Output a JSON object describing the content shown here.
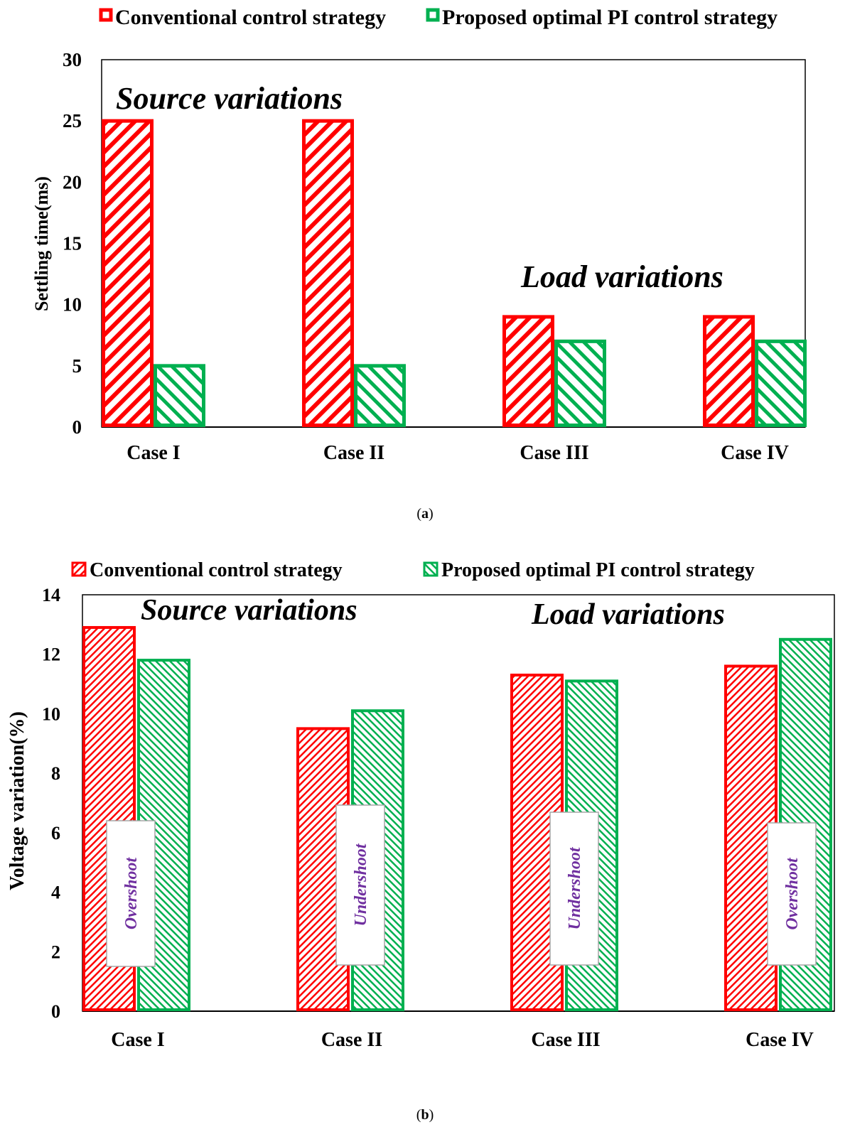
{
  "colors": {
    "conventional": "#ff0000",
    "proposed": "#00b050",
    "annotation": "#7030a0"
  },
  "chart_data": [
    {
      "type": "bar",
      "panel": "a",
      "caption_open": "(",
      "caption_letter": "a",
      "caption_close": ")",
      "categories": [
        "Case I",
        "Case II",
        "Case III",
        "Case IV"
      ],
      "series": [
        {
          "name": "Conventional control strategy",
          "values": [
            25,
            25,
            9,
            9
          ]
        },
        {
          "name": "Proposed optimal PI control strategy",
          "values": [
            5,
            5,
            7,
            7
          ]
        }
      ],
      "ylabel": "Settling time(ms)",
      "xlabel": "",
      "ylim": [
        0,
        30
      ],
      "yticks": [
        "0",
        "5",
        "10",
        "15",
        "20",
        "25",
        "30"
      ],
      "annotations": [
        "Source variations",
        "Load variations"
      ],
      "legend_position": "top",
      "grid": false
    },
    {
      "type": "bar",
      "panel": "b",
      "caption_open": "(",
      "caption_letter": "b",
      "caption_close": ")",
      "categories": [
        "Case I",
        "Case II",
        "Case III",
        "Case IV"
      ],
      "series": [
        {
          "name": "Conventional control strategy",
          "values": [
            12.9,
            9.5,
            11.3,
            11.6
          ]
        },
        {
          "name": "Proposed optimal PI control strategy",
          "values": [
            11.8,
            10.1,
            11.1,
            12.5
          ]
        }
      ],
      "ylabel": "Voltage variation(%)",
      "xlabel": "",
      "ylim": [
        0,
        14
      ],
      "yticks": [
        "0",
        "2",
        "4",
        "6",
        "8",
        "10",
        "12",
        "14"
      ],
      "annotations": [
        "Source variations",
        "Load variations"
      ],
      "bar_notes": [
        "Overshoot",
        "Undershoot",
        "Undershoot",
        "Overshoot"
      ],
      "legend_position": "top",
      "grid": false
    }
  ]
}
